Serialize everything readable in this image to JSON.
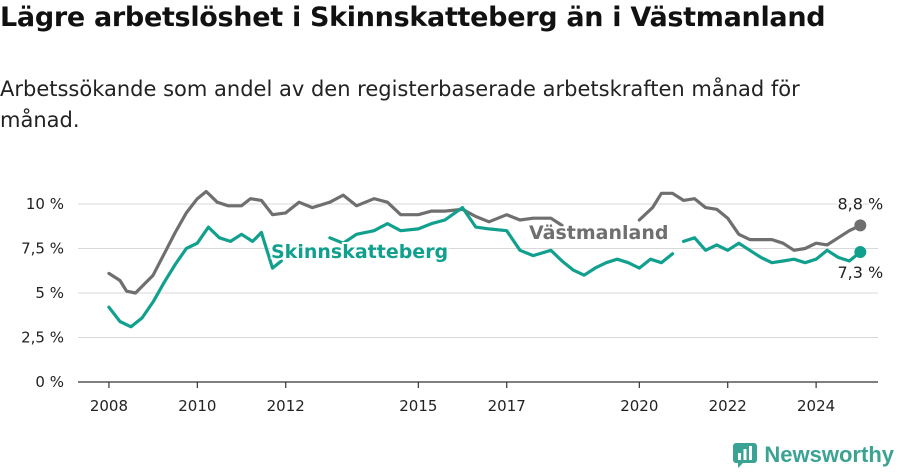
{
  "header": {
    "title": "Lägre arbetslöshet i Skinnskatteberg än i Västmanland",
    "subtitle": "Arbetssökande som andel av den registerbaserade arbetskraften månad för månad."
  },
  "brand": {
    "name": "Newsworthy",
    "color": "#3aa393"
  },
  "chart_data": {
    "type": "line",
    "title": "Lägre arbetslöshet i Skinnskatteberg än i Västmanland",
    "subtitle": "Arbetssökande som andel av den registerbaserade arbetskraften månad för månad.",
    "xlabel": "",
    "ylabel": "",
    "ylim": [
      0,
      10
    ],
    "yticks": [
      {
        "value": 0,
        "label": "0 %"
      },
      {
        "value": 2.5,
        "label": "2,5 %"
      },
      {
        "value": 5,
        "label": "5 %"
      },
      {
        "value": 7.5,
        "label": "7,5 %"
      },
      {
        "value": 10,
        "label": "10 %"
      }
    ],
    "xticks": [
      "2008",
      "2010",
      "2012",
      "2015",
      "2017",
      "2020",
      "2022",
      "2024"
    ],
    "grid": "horizontal",
    "series": [
      {
        "name": "Västmanland",
        "color": "#6f6f6f",
        "end_label": "8,8 %",
        "points": [
          [
            2008.0,
            6.1
          ],
          [
            2008.25,
            5.7
          ],
          [
            2008.4,
            5.1
          ],
          [
            2008.6,
            5.0
          ],
          [
            2008.8,
            5.5
          ],
          [
            2009.0,
            6.0
          ],
          [
            2009.25,
            7.2
          ],
          [
            2009.5,
            8.4
          ],
          [
            2009.75,
            9.5
          ],
          [
            2010.0,
            10.3
          ],
          [
            2010.2,
            10.7
          ],
          [
            2010.45,
            10.1
          ],
          [
            2010.7,
            9.9
          ],
          [
            2011.0,
            9.9
          ],
          [
            2011.2,
            10.3
          ],
          [
            2011.45,
            10.2
          ],
          [
            2011.7,
            9.4
          ],
          [
            2012.0,
            9.5
          ],
          [
            2012.3,
            10.1
          ],
          [
            2012.6,
            9.8
          ],
          [
            2013.0,
            10.1
          ],
          [
            2013.3,
            10.5
          ],
          [
            2013.6,
            9.9
          ],
          [
            2014.0,
            10.3
          ],
          [
            2014.3,
            10.1
          ],
          [
            2014.6,
            9.4
          ],
          [
            2015.0,
            9.4
          ],
          [
            2015.3,
            9.6
          ],
          [
            2015.6,
            9.6
          ],
          [
            2016.0,
            9.7
          ],
          [
            2016.3,
            9.3
          ],
          [
            2016.6,
            9.0
          ],
          [
            2017.0,
            9.4
          ],
          [
            2017.3,
            9.1
          ],
          [
            2017.6,
            9.2
          ],
          [
            2018.0,
            9.2
          ],
          [
            2018.25,
            8.8
          ]
        ]
      },
      {
        "name": "Västmanland",
        "color": "#6f6f6f",
        "points": [
          [
            2020.0,
            9.1
          ],
          [
            2020.3,
            9.8
          ],
          [
            2020.5,
            10.6
          ],
          [
            2020.75,
            10.6
          ],
          [
            2021.0,
            10.2
          ],
          [
            2021.25,
            10.3
          ],
          [
            2021.5,
            9.8
          ],
          [
            2021.75,
            9.7
          ],
          [
            2022.0,
            9.2
          ],
          [
            2022.25,
            8.3
          ],
          [
            2022.5,
            8.0
          ],
          [
            2022.75,
            8.0
          ],
          [
            2023.0,
            8.0
          ],
          [
            2023.25,
            7.8
          ],
          [
            2023.5,
            7.4
          ],
          [
            2023.75,
            7.5
          ],
          [
            2024.0,
            7.8
          ],
          [
            2024.25,
            7.7
          ],
          [
            2024.5,
            8.1
          ],
          [
            2024.75,
            8.5
          ],
          [
            2025.0,
            8.8
          ]
        ]
      },
      {
        "name": "Skinnskatteberg",
        "color": "#12a08e",
        "end_label": "7,3 %",
        "points": [
          [
            2008.0,
            4.2
          ],
          [
            2008.25,
            3.4
          ],
          [
            2008.5,
            3.1
          ],
          [
            2008.75,
            3.6
          ],
          [
            2009.0,
            4.5
          ],
          [
            2009.25,
            5.6
          ],
          [
            2009.5,
            6.6
          ],
          [
            2009.75,
            7.5
          ],
          [
            2010.0,
            7.8
          ],
          [
            2010.25,
            8.7
          ],
          [
            2010.5,
            8.1
          ],
          [
            2010.75,
            7.9
          ],
          [
            2011.0,
            8.3
          ],
          [
            2011.25,
            7.9
          ],
          [
            2011.45,
            8.4
          ],
          [
            2011.7,
            6.4
          ],
          [
            2011.9,
            6.8
          ]
        ]
      },
      {
        "name": "Skinnskatteberg",
        "color": "#12a08e",
        "points": [
          [
            2013.0,
            8.1
          ],
          [
            2013.3,
            7.8
          ],
          [
            2013.6,
            8.3
          ],
          [
            2014.0,
            8.5
          ],
          [
            2014.3,
            8.9
          ],
          [
            2014.6,
            8.5
          ],
          [
            2015.0,
            8.6
          ],
          [
            2015.3,
            8.9
          ],
          [
            2015.6,
            9.1
          ],
          [
            2016.0,
            9.8
          ],
          [
            2016.3,
            8.7
          ],
          [
            2016.6,
            8.6
          ],
          [
            2017.0,
            8.5
          ],
          [
            2017.3,
            7.4
          ],
          [
            2017.6,
            7.1
          ],
          [
            2018.0,
            7.4
          ],
          [
            2018.25,
            6.8
          ],
          [
            2018.5,
            6.3
          ],
          [
            2018.75,
            6.0
          ],
          [
            2019.0,
            6.4
          ],
          [
            2019.25,
            6.7
          ],
          [
            2019.5,
            6.9
          ],
          [
            2019.75,
            6.7
          ],
          [
            2020.0,
            6.4
          ],
          [
            2020.25,
            6.9
          ],
          [
            2020.5,
            6.7
          ],
          [
            2020.75,
            7.2
          ]
        ]
      },
      {
        "name": "Skinnskatteberg",
        "color": "#12a08e",
        "points": [
          [
            2021.0,
            7.9
          ],
          [
            2021.25,
            8.1
          ],
          [
            2021.5,
            7.4
          ],
          [
            2021.75,
            7.7
          ],
          [
            2022.0,
            7.4
          ],
          [
            2022.25,
            7.8
          ],
          [
            2022.5,
            7.4
          ],
          [
            2022.75,
            7.0
          ],
          [
            2023.0,
            6.7
          ],
          [
            2023.25,
            6.8
          ],
          [
            2023.5,
            6.9
          ],
          [
            2023.75,
            6.7
          ],
          [
            2024.0,
            6.9
          ],
          [
            2024.25,
            7.4
          ],
          [
            2024.5,
            7.0
          ],
          [
            2024.75,
            6.8
          ],
          [
            2025.0,
            7.3
          ]
        ]
      }
    ],
    "labels": [
      {
        "text": "Skinnskatteberg",
        "color": "#12a08e"
      },
      {
        "text": "Västmanland",
        "color": "#6f6f6f"
      }
    ]
  }
}
